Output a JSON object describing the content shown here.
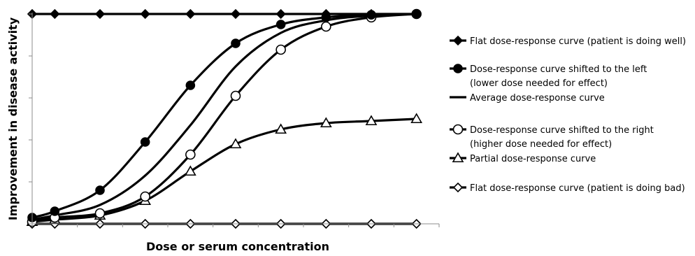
{
  "chart_data": {
    "type": "line",
    "xlabel": "Dose or serum concentration",
    "ylabel": "Improvement in disease activity",
    "xlim": [
      0,
      9
    ],
    "ylim": [
      0,
      5
    ],
    "grid": false,
    "legend_position": "right",
    "series": [
      {
        "key": "flat_well",
        "name": "Flat dose-response curve (patient is doing well)",
        "marker": "filled-diamond",
        "smooth": false,
        "x": [
          0,
          0.5,
          1.5,
          2.5,
          3.5,
          4.5,
          5.5,
          6.5,
          7.5,
          8.5
        ],
        "y": [
          5,
          5,
          5,
          5,
          5,
          5,
          5,
          5,
          5,
          5
        ]
      },
      {
        "key": "shifted_left",
        "name": "Dose-response curve shifted to the left",
        "name_line2": "(lower dose needed for effect)",
        "marker": "filled-circle",
        "smooth": true,
        "x": [
          0,
          0.5,
          1.5,
          2.5,
          3.5,
          4.5,
          5.5,
          6.5,
          7.5,
          8.5
        ],
        "y": [
          0.15,
          0.3,
          0.8,
          1.95,
          3.3,
          4.3,
          4.75,
          4.92,
          4.98,
          5
        ]
      },
      {
        "key": "average",
        "name": "Average dose-response curve",
        "marker": "none",
        "smooth": true,
        "x": [
          0,
          0.5,
          1.5,
          2.5,
          3.5,
          4.5,
          5.5,
          6.5,
          7.5,
          8.5
        ],
        "y": [
          0.1,
          0.2,
          0.45,
          1.15,
          2.35,
          3.75,
          4.55,
          4.85,
          4.96,
          5
        ]
      },
      {
        "key": "shifted_right",
        "name": "Dose-response curve shifted to the right",
        "name_line2": "(higher dose needed for effect)",
        "marker": "open-circle",
        "smooth": true,
        "x": [
          0,
          0.5,
          1.5,
          2.5,
          3.5,
          4.5,
          5.5,
          6.5,
          7.5,
          8.5
        ],
        "y": [
          0.05,
          0.15,
          0.25,
          0.65,
          1.65,
          3.05,
          4.15,
          4.7,
          4.92,
          5
        ]
      },
      {
        "key": "partial",
        "name": "Partial dose-response curve",
        "marker": "open-triangle",
        "smooth": true,
        "x": [
          0,
          0.5,
          1.5,
          2.5,
          3.5,
          4.5,
          5.5,
          6.5,
          7.5,
          8.5
        ],
        "y": [
          0.05,
          0.1,
          0.2,
          0.55,
          1.25,
          1.9,
          2.25,
          2.4,
          2.45,
          2.5
        ]
      },
      {
        "key": "flat_bad",
        "name": "Flat dose-response curve (patient is doing bad)",
        "marker": "open-diamond",
        "smooth": false,
        "x": [
          0,
          0.5,
          1.5,
          2.5,
          3.5,
          4.5,
          5.5,
          6.5,
          7.5,
          8.5
        ],
        "y": [
          0,
          0,
          0,
          0,
          0,
          0,
          0,
          0,
          0,
          0
        ]
      }
    ]
  }
}
